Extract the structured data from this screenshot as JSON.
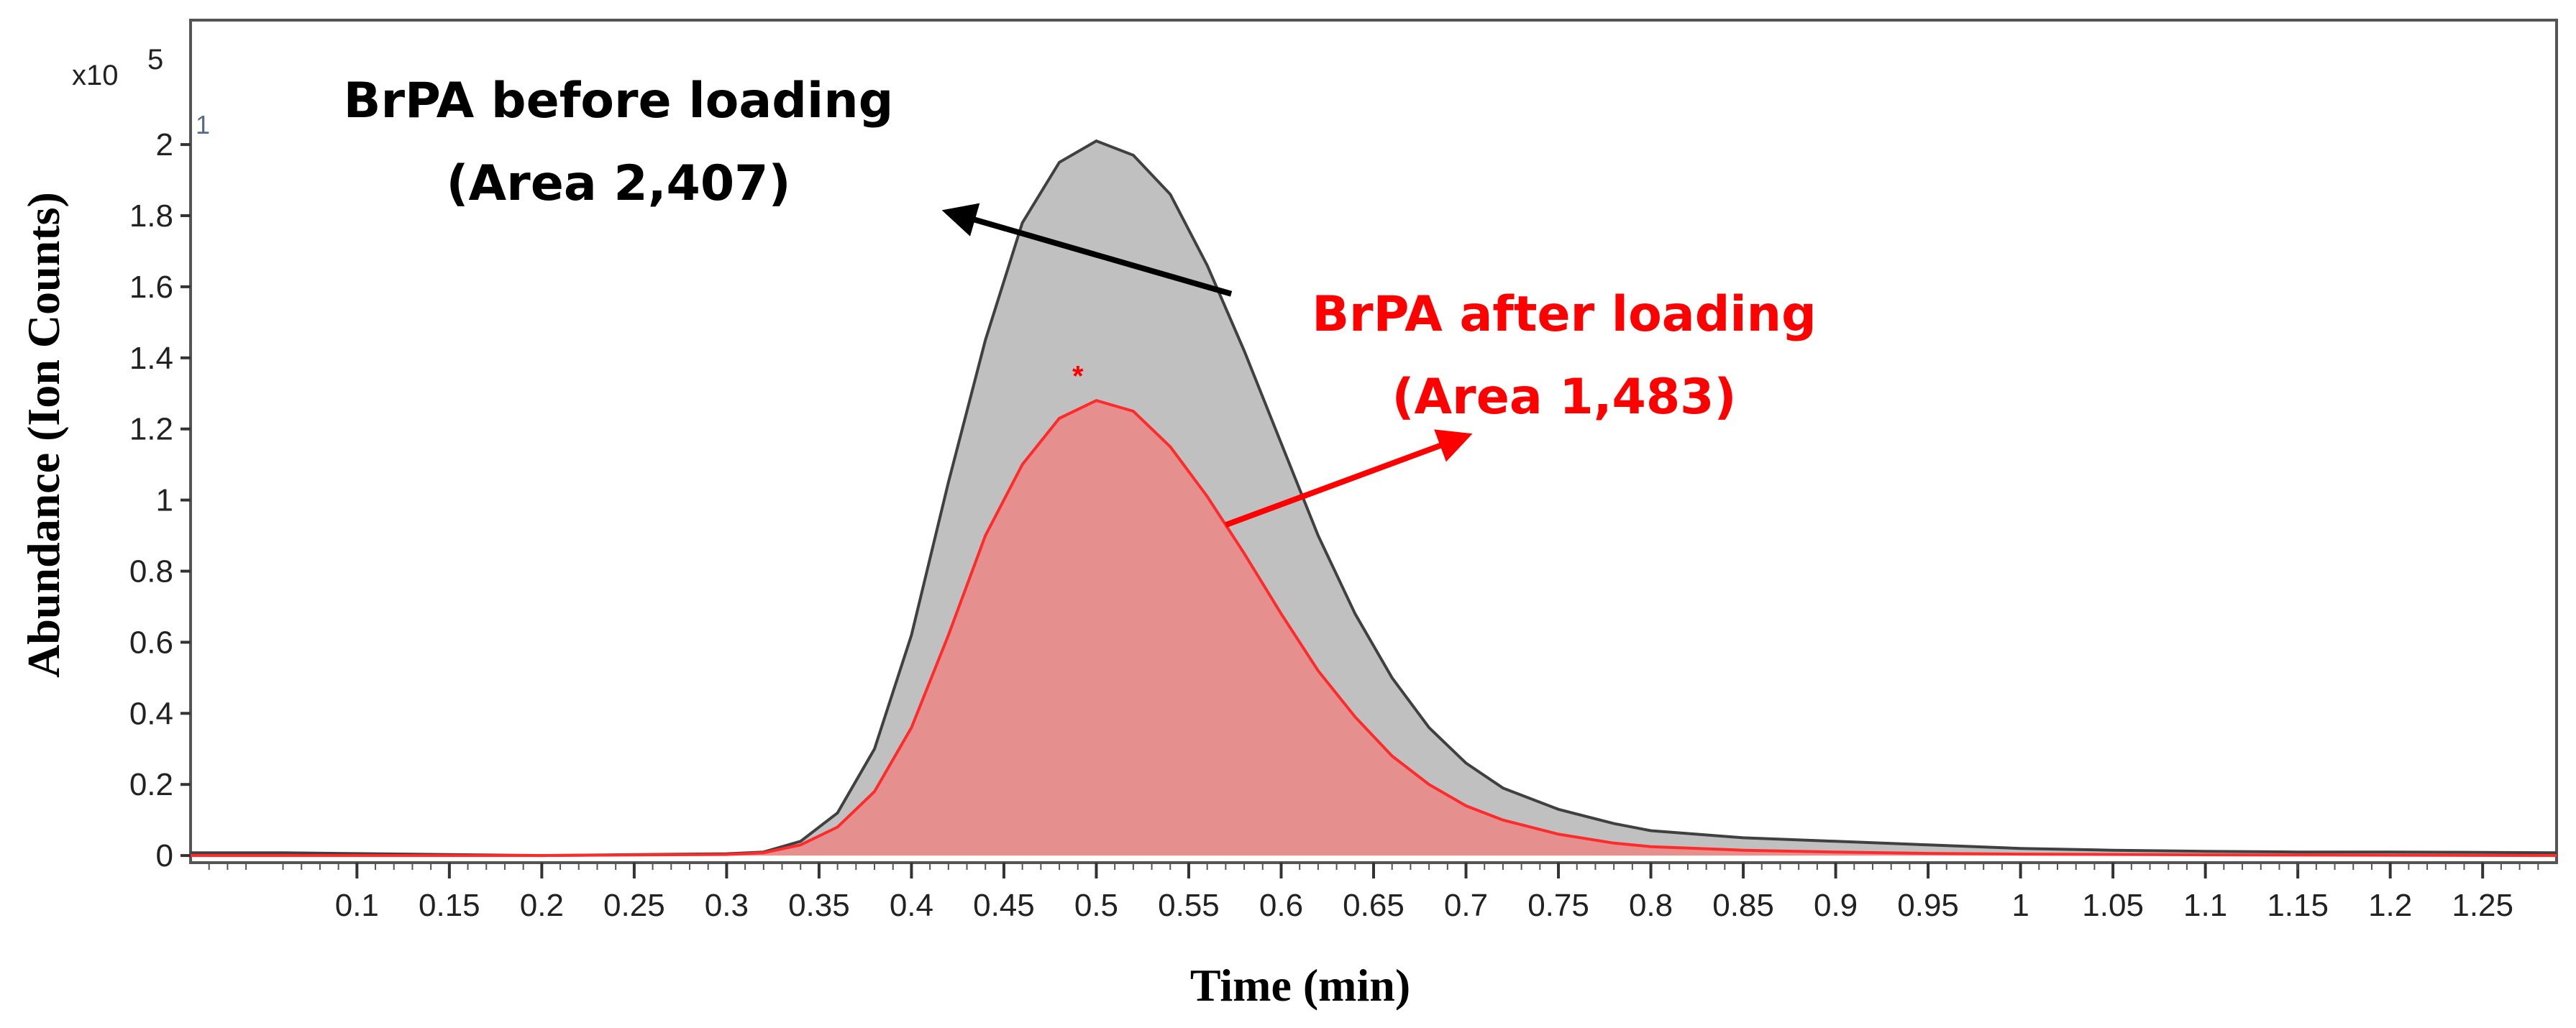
{
  "chart_data": {
    "type": "area",
    "title": "",
    "xlabel": "Time (min)",
    "ylabel": "Abundance (Ion Counts)",
    "y_multiplier": "x10",
    "y_multiplier_exp": "5",
    "y_corner_label": "1",
    "xlim": [
      0.01,
      1.29
    ],
    "ylim": [
      -0.02,
      2.35
    ],
    "x_ticks": [
      0.1,
      0.15,
      0.2,
      0.25,
      0.3,
      0.35,
      0.4,
      0.45,
      0.5,
      0.55,
      0.6,
      0.65,
      0.7,
      0.75,
      0.8,
      0.85,
      0.9,
      0.95,
      1,
      1.05,
      1.1,
      1.15,
      1.2,
      1.25
    ],
    "x_tick_labels": [
      "0.1",
      "0.15",
      "0.2",
      "0.25",
      "0.3",
      "0.35",
      "0.4",
      "0.45",
      "0.5",
      "0.55",
      "0.6",
      "0.65",
      "0.7",
      "0.75",
      "0.8",
      "0.85",
      "0.9",
      "0.95",
      "1",
      "1.05",
      "1.1",
      "1.15",
      "1.2",
      "1.25"
    ],
    "y_ticks": [
      0,
      0.2,
      0.4,
      0.6,
      0.8,
      1,
      1.2,
      1.4,
      1.6,
      1.8,
      2
    ],
    "y_tick_labels": [
      "0",
      "0.2",
      "0.4",
      "0.6",
      "0.8",
      "1",
      "1.2",
      "1.4",
      "1.6",
      "1.8",
      "2"
    ],
    "grid": false,
    "series": [
      {
        "name": "BrPA before loading",
        "line_color": "#404040",
        "fill_color": "#c0c0c0",
        "x": [
          0.01,
          0.06,
          0.09,
          0.2,
          0.3,
          0.32,
          0.34,
          0.36,
          0.38,
          0.4,
          0.42,
          0.44,
          0.46,
          0.48,
          0.5,
          0.52,
          0.54,
          0.56,
          0.58,
          0.6,
          0.62,
          0.64,
          0.66,
          0.68,
          0.7,
          0.72,
          0.75,
          0.78,
          0.8,
          0.85,
          0.9,
          0.95,
          1.0,
          1.05,
          1.1,
          1.15,
          1.2,
          1.29
        ],
        "y": [
          0.008,
          0.008,
          0.006,
          0.0,
          0.005,
          0.01,
          0.04,
          0.12,
          0.3,
          0.62,
          1.05,
          1.45,
          1.78,
          1.95,
          2.01,
          1.97,
          1.86,
          1.66,
          1.42,
          1.16,
          0.9,
          0.68,
          0.5,
          0.36,
          0.26,
          0.19,
          0.13,
          0.09,
          0.07,
          0.05,
          0.04,
          0.03,
          0.02,
          0.015,
          0.012,
          0.01,
          0.01,
          0.008
        ]
      },
      {
        "name": "BrPA after loading",
        "line_color": "#ff2a2a",
        "fill_color": "#e58f8f",
        "x": [
          0.01,
          0.2,
          0.3,
          0.32,
          0.34,
          0.36,
          0.38,
          0.4,
          0.42,
          0.44,
          0.46,
          0.48,
          0.5,
          0.52,
          0.54,
          0.56,
          0.58,
          0.6,
          0.62,
          0.64,
          0.66,
          0.68,
          0.7,
          0.72,
          0.75,
          0.78,
          0.8,
          0.85,
          0.9,
          0.95,
          1.0,
          1.1,
          1.29
        ],
        "y": [
          0.0,
          0.0,
          0.003,
          0.008,
          0.03,
          0.08,
          0.18,
          0.36,
          0.62,
          0.9,
          1.1,
          1.23,
          1.28,
          1.25,
          1.15,
          1.01,
          0.85,
          0.68,
          0.52,
          0.39,
          0.28,
          0.2,
          0.14,
          0.1,
          0.06,
          0.035,
          0.025,
          0.015,
          0.01,
          0.006,
          0.004,
          0.002,
          0.0
        ]
      }
    ],
    "annotations": [
      {
        "lines": [
          "BrPA before loading",
          "(Area 2,407)"
        ],
        "color": "#000000",
        "arrow_from": [
          0.573,
          1.58
        ],
        "arrow_to": [
          0.42,
          1.81
        ]
      },
      {
        "lines": [
          "BrPA after loading",
          "(Area 1,483)"
        ],
        "color": "#ff0000",
        "arrow_from": [
          0.57,
          0.93
        ],
        "arrow_to": [
          0.7,
          1.18
        ]
      }
    ],
    "peak_marker": {
      "symbol": "*",
      "x": 0.49,
      "y": 1.35,
      "color": "#ff0000"
    }
  }
}
